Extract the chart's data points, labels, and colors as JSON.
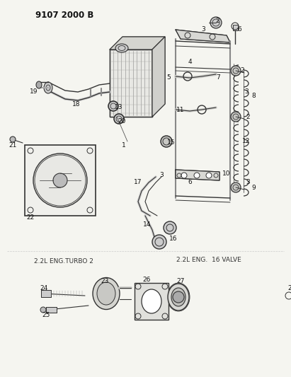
{
  "header": "9107 2000 B",
  "background_color": "#f5f5f0",
  "fig_width": 4.11,
  "fig_height": 5.33,
  "dpi": 100,
  "section1_label": "2.2L ENG.TURBO 2",
  "section2_label": "2.2L ENG.  16 VALVE",
  "line_color": "#333333",
  "text_color": "#111111",
  "label_color": "#222222"
}
